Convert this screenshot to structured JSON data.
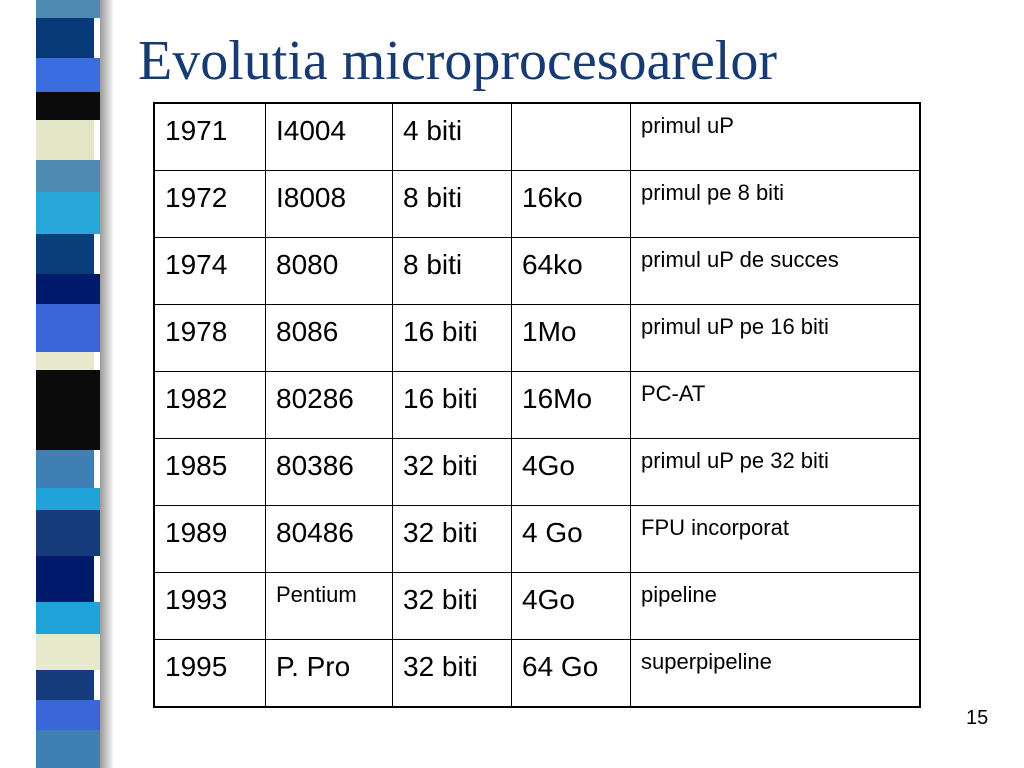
{
  "slide": {
    "title": "Evolutia microprocesoarelor",
    "page_number": "15"
  },
  "table": {
    "rows": [
      {
        "year": "1971",
        "model": "I4004",
        "bits": "4 biti",
        "memory": "",
        "note": "primul uP"
      },
      {
        "year": "1972",
        "model": "I8008",
        "bits": "8 biti",
        "memory": "16ko",
        "note": "primul pe 8 biti"
      },
      {
        "year": "1974",
        "model": "8080",
        "bits": "8 biti",
        "memory": "64ko",
        "note": "primul uP de succes"
      },
      {
        "year": "1978",
        "model": "8086",
        "bits": "16 biti",
        "memory": "1Mo",
        "note": "primul uP pe 16 biti"
      },
      {
        "year": "1982",
        "model": "80286",
        "bits": "16 biti",
        "memory": "16Mo",
        "note": " PC-AT"
      },
      {
        "year": "1985",
        "model": "80386",
        "bits": "32 biti",
        "memory": "4Go",
        "note": "primul uP pe 32 biti"
      },
      {
        "year": "1989",
        "model": "80486",
        "bits": "32 biti",
        "memory": "4 Go",
        "note": "FPU incorporat"
      },
      {
        "year": "1993",
        "model": "Pentium",
        "bits": "32 biti",
        "memory": "4Go",
        "note": "pipeline"
      },
      {
        "year": "1995",
        "model": "P. Pro",
        "bits": "32 biti",
        "memory": "64 Go",
        "note": "superpipeline"
      }
    ]
  },
  "colors": {
    "title": "#173a73",
    "stripe": [
      "#4f8bb0",
      "#0a2f6e",
      "#3a67d8",
      "#0b0b0b",
      "#e3e7c7",
      "#27a6da",
      "#021a6b",
      "#1fa3d8",
      "#163b7a",
      "#e6e9cc",
      "#3f7fb4"
    ]
  }
}
